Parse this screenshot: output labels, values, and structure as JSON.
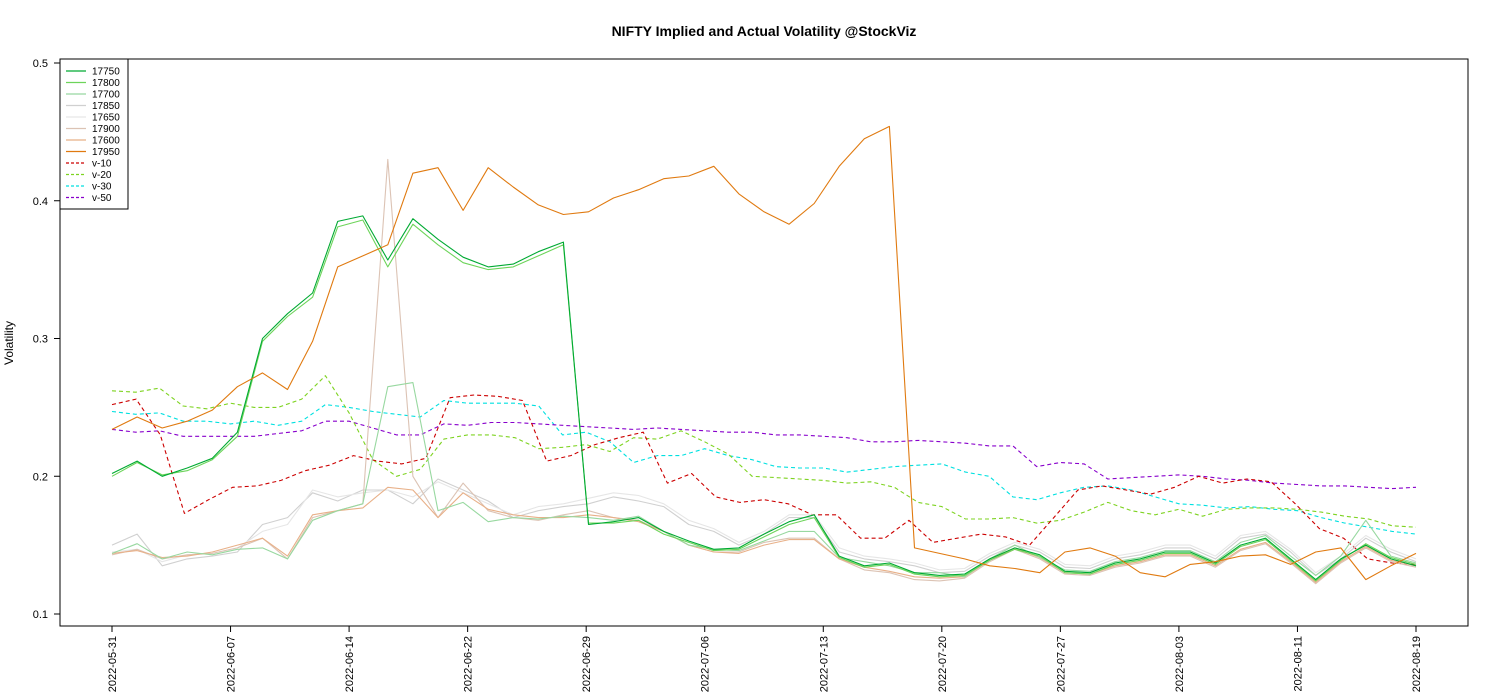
{
  "chart_data": {
    "type": "line",
    "title": "NIFTY Implied and Actual Volatility @StockViz",
    "ylabel": "Volatility",
    "xlabel": "",
    "ylim": [
      0.1,
      0.5
    ],
    "y_ticks": [
      "0.1",
      "0.2",
      "0.3",
      "0.4",
      "0.5"
    ],
    "y_tick_values": [
      0.1,
      0.2,
      0.3,
      0.4,
      0.5
    ],
    "x_tick_labels": [
      "2022-05-31",
      "2022-06-07",
      "2022-06-14",
      "2022-06-22",
      "2022-06-29",
      "2022-07-06",
      "2022-07-13",
      "2022-07-20",
      "2022-07-27",
      "2022-08-03",
      "2022-08-11",
      "2022-08-19"
    ],
    "legend_position": "top-left",
    "grid": false,
    "series": [
      {
        "name": "17750",
        "color": "#00aa33",
        "dash": "solid",
        "values": [
          0.202,
          0.211,
          0.2,
          0.206,
          0.213,
          0.232,
          0.3,
          0.318,
          0.333,
          0.385,
          0.389,
          0.357,
          0.387,
          0.372,
          0.359,
          0.352,
          0.354,
          0.363,
          0.37,
          0.165,
          0.167,
          0.17,
          0.16,
          0.153,
          0.147,
          0.148,
          0.158,
          0.167,
          0.172,
          0.142,
          0.135,
          0.137,
          0.13,
          0.128,
          0.129,
          0.14,
          0.148,
          0.143,
          0.131,
          0.13,
          0.137,
          0.14,
          0.145,
          0.145,
          0.137,
          0.15,
          0.155,
          0.14,
          0.125,
          0.14,
          0.15,
          0.14,
          0.135
        ]
      },
      {
        "name": "17800",
        "color": "#6dd45a",
        "dash": "solid",
        "values": [
          0.2,
          0.21,
          0.201,
          0.204,
          0.212,
          0.229,
          0.298,
          0.316,
          0.33,
          0.381,
          0.386,
          0.352,
          0.383,
          0.368,
          0.355,
          0.35,
          0.352,
          0.36,
          0.368,
          0.166,
          0.166,
          0.168,
          0.158,
          0.152,
          0.146,
          0.147,
          0.156,
          0.165,
          0.17,
          0.141,
          0.134,
          0.136,
          0.129,
          0.127,
          0.128,
          0.139,
          0.147,
          0.142,
          0.13,
          0.129,
          0.136,
          0.139,
          0.144,
          0.144,
          0.136,
          0.149,
          0.154,
          0.139,
          0.124,
          0.139,
          0.151,
          0.141,
          0.136
        ]
      },
      {
        "name": "17700",
        "color": "#98d8a0",
        "dash": "solid",
        "values": [
          0.144,
          0.151,
          0.14,
          0.145,
          0.143,
          0.147,
          0.148,
          0.14,
          0.168,
          0.175,
          0.18,
          0.265,
          0.268,
          0.175,
          0.181,
          0.167,
          0.17,
          0.169,
          0.171,
          0.17,
          0.168,
          0.171,
          0.16,
          0.15,
          0.147,
          0.146,
          0.153,
          0.16,
          0.16,
          0.141,
          0.138,
          0.135,
          0.13,
          0.13,
          0.127,
          0.14,
          0.15,
          0.141,
          0.132,
          0.131,
          0.138,
          0.141,
          0.146,
          0.146,
          0.138,
          0.152,
          0.157,
          0.142,
          0.128,
          0.142,
          0.168,
          0.142,
          0.137
        ]
      },
      {
        "name": "17850",
        "color": "#d0d0d0",
        "dash": "solid",
        "values": [
          0.15,
          0.158,
          0.135,
          0.14,
          0.142,
          0.145,
          0.165,
          0.17,
          0.188,
          0.182,
          0.19,
          0.19,
          0.18,
          0.198,
          0.19,
          0.182,
          0.17,
          0.175,
          0.178,
          0.18,
          0.185,
          0.182,
          0.178,
          0.165,
          0.16,
          0.15,
          0.158,
          0.17,
          0.17,
          0.145,
          0.14,
          0.138,
          0.135,
          0.13,
          0.131,
          0.142,
          0.15,
          0.145,
          0.134,
          0.133,
          0.14,
          0.143,
          0.148,
          0.148,
          0.14,
          0.155,
          0.158,
          0.145,
          0.128,
          0.14,
          0.155,
          0.145,
          0.138
        ]
      },
      {
        "name": "17650",
        "color": "#e6e6e6",
        "dash": "solid",
        "values": [
          0.145,
          0.147,
          0.138,
          0.143,
          0.144,
          0.148,
          0.16,
          0.165,
          0.19,
          0.185,
          0.188,
          0.19,
          0.185,
          0.196,
          0.188,
          0.18,
          0.172,
          0.178,
          0.18,
          0.184,
          0.188,
          0.186,
          0.18,
          0.168,
          0.162,
          0.152,
          0.16,
          0.172,
          0.172,
          0.148,
          0.142,
          0.14,
          0.137,
          0.132,
          0.133,
          0.144,
          0.152,
          0.147,
          0.136,
          0.135,
          0.142,
          0.145,
          0.15,
          0.15,
          0.142,
          0.157,
          0.16,
          0.147,
          0.13,
          0.142,
          0.157,
          0.147,
          0.14
        ]
      },
      {
        "name": "17900",
        "color": "#dcc3b4",
        "dash": "solid",
        "values": [
          0.143,
          0.147,
          0.14,
          0.143,
          0.144,
          0.148,
          0.155,
          0.14,
          0.17,
          0.175,
          0.18,
          0.43,
          0.2,
          0.17,
          0.195,
          0.175,
          0.17,
          0.168,
          0.172,
          0.175,
          0.17,
          0.168,
          0.16,
          0.15,
          0.145,
          0.145,
          0.152,
          0.155,
          0.155,
          0.14,
          0.132,
          0.13,
          0.125,
          0.124,
          0.126,
          0.138,
          0.147,
          0.14,
          0.129,
          0.128,
          0.134,
          0.137,
          0.142,
          0.142,
          0.134,
          0.146,
          0.151,
          0.137,
          0.122,
          0.137,
          0.148,
          0.138,
          0.134
        ]
      },
      {
        "name": "17600",
        "color": "#e8b088",
        "dash": "solid",
        "values": [
          0.144,
          0.146,
          0.141,
          0.142,
          0.145,
          0.15,
          0.155,
          0.142,
          0.172,
          0.175,
          0.177,
          0.192,
          0.19,
          0.17,
          0.188,
          0.176,
          0.172,
          0.17,
          0.17,
          0.172,
          0.17,
          0.167,
          0.16,
          0.15,
          0.145,
          0.144,
          0.15,
          0.154,
          0.154,
          0.14,
          0.134,
          0.131,
          0.127,
          0.126,
          0.127,
          0.139,
          0.148,
          0.141,
          0.13,
          0.129,
          0.135,
          0.138,
          0.143,
          0.143,
          0.135,
          0.147,
          0.152,
          0.138,
          0.123,
          0.138,
          0.149,
          0.139,
          0.135
        ]
      },
      {
        "name": "17950",
        "color": "#e07a10",
        "dash": "solid",
        "values": [
          0.234,
          0.243,
          0.235,
          0.24,
          0.248,
          0.265,
          0.275,
          0.263,
          0.298,
          0.352,
          0.36,
          0.368,
          0.42,
          0.424,
          0.393,
          0.424,
          0.41,
          0.397,
          0.39,
          0.392,
          0.402,
          0.408,
          0.416,
          0.418,
          0.425,
          0.405,
          0.392,
          0.383,
          0.398,
          0.425,
          0.445,
          0.454,
          0.148,
          0.144,
          0.14,
          0.135,
          0.133,
          0.13,
          0.145,
          0.148,
          0.142,
          0.13,
          0.127,
          0.136,
          0.138,
          0.142,
          0.143,
          0.136,
          0.145,
          0.148,
          0.125,
          0.135,
          0.144
        ]
      },
      {
        "name": "v-10",
        "color": "#cc0000",
        "dash": "4,3",
        "values": [
          0.252,
          0.256,
          0.23,
          0.173,
          0.183,
          0.192,
          0.193,
          0.197,
          0.204,
          0.208,
          0.215,
          0.211,
          0.209,
          0.213,
          0.257,
          0.259,
          0.258,
          0.255,
          0.211,
          0.215,
          0.223,
          0.228,
          0.232,
          0.195,
          0.202,
          0.185,
          0.181,
          0.183,
          0.18,
          0.172,
          0.172,
          0.155,
          0.155,
          0.168,
          0.152,
          0.155,
          0.158,
          0.156,
          0.15,
          0.17,
          0.19,
          0.193,
          0.19,
          0.187,
          0.192,
          0.2,
          0.195,
          0.198,
          0.196,
          0.18,
          0.162,
          0.155,
          0.14,
          0.137,
          0.136
        ]
      },
      {
        "name": "v-20",
        "color": "#7ed321",
        "dash": "4,3",
        "values": [
          0.262,
          0.261,
          0.264,
          0.251,
          0.249,
          0.253,
          0.25,
          0.25,
          0.256,
          0.273,
          0.246,
          0.212,
          0.2,
          0.205,
          0.227,
          0.23,
          0.23,
          0.228,
          0.22,
          0.221,
          0.223,
          0.218,
          0.228,
          0.227,
          0.233,
          0.225,
          0.216,
          0.2,
          0.199,
          0.198,
          0.197,
          0.195,
          0.196,
          0.192,
          0.181,
          0.178,
          0.169,
          0.169,
          0.17,
          0.166,
          0.168,
          0.174,
          0.181,
          0.175,
          0.172,
          0.176,
          0.171,
          0.176,
          0.177,
          0.177,
          0.176,
          0.174,
          0.171,
          0.169,
          0.164,
          0.163
        ]
      },
      {
        "name": "v-30",
        "color": "#00e0e0",
        "dash": "4,3",
        "values": [
          0.247,
          0.245,
          0.246,
          0.24,
          0.24,
          0.238,
          0.24,
          0.237,
          0.24,
          0.252,
          0.25,
          0.247,
          0.245,
          0.243,
          0.255,
          0.253,
          0.253,
          0.253,
          0.251,
          0.23,
          0.232,
          0.225,
          0.21,
          0.215,
          0.215,
          0.22,
          0.215,
          0.212,
          0.207,
          0.206,
          0.206,
          0.203,
          0.205,
          0.207,
          0.208,
          0.209,
          0.203,
          0.2,
          0.185,
          0.183,
          0.188,
          0.192,
          0.193,
          0.19,
          0.185,
          0.18,
          0.179,
          0.177,
          0.178,
          0.176,
          0.175,
          0.17,
          0.166,
          0.163,
          0.16,
          0.158
        ]
      },
      {
        "name": "v-50",
        "color": "#8800cc",
        "dash": "4,3",
        "values": [
          0.234,
          0.232,
          0.233,
          0.229,
          0.229,
          0.229,
          0.229,
          0.231,
          0.233,
          0.24,
          0.24,
          0.235,
          0.23,
          0.23,
          0.238,
          0.237,
          0.239,
          0.239,
          0.238,
          0.237,
          0.236,
          0.235,
          0.234,
          0.235,
          0.234,
          0.233,
          0.232,
          0.232,
          0.23,
          0.23,
          0.229,
          0.228,
          0.225,
          0.225,
          0.226,
          0.225,
          0.224,
          0.222,
          0.222,
          0.207,
          0.21,
          0.209,
          0.198,
          0.199,
          0.2,
          0.201,
          0.2,
          0.198,
          0.197,
          0.195,
          0.194,
          0.193,
          0.193,
          0.192,
          0.191,
          0.192
        ]
      }
    ]
  }
}
